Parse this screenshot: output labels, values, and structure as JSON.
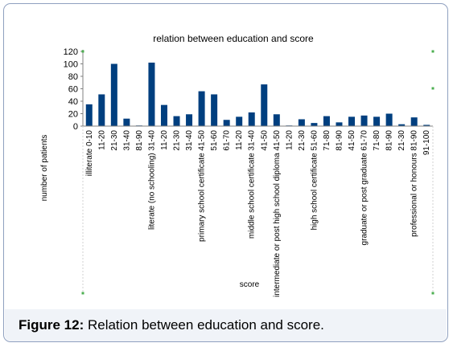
{
  "chart_data": {
    "type": "bar",
    "title": "relation between education and score",
    "xlabel": "score",
    "ylabel": "number of patients",
    "ylim": [
      0,
      120
    ],
    "yticks": [
      0,
      20,
      40,
      60,
      80,
      100,
      120
    ],
    "grid": false,
    "legend": "none",
    "bar_color": "#003f7f",
    "groups": [
      "illiterate",
      "literate (no schooling)",
      "primary school certificate",
      "middle school certificate",
      "intermediate or post high school diploma",
      "high school certificate",
      "graduate or post graduate",
      "professional or honours"
    ],
    "bars": [
      {
        "label": "0-10",
        "value": 35
      },
      {
        "label": "11-20",
        "value": 51
      },
      {
        "label": "21-30",
        "value": 100
      },
      {
        "label": "31-40",
        "value": 12
      },
      {
        "label": "81-90",
        "value": 1
      },
      {
        "label": "31-40",
        "value": 102
      },
      {
        "label": "11-20",
        "value": 34
      },
      {
        "label": "21-30",
        "value": 16
      },
      {
        "label": "31-40",
        "value": 19
      },
      {
        "label": "41-50",
        "value": 56
      },
      {
        "label": "51-60",
        "value": 51
      },
      {
        "label": "61-70",
        "value": 10
      },
      {
        "label": "11-20",
        "value": 15
      },
      {
        "label": "31-40",
        "value": 22
      },
      {
        "label": "41-50",
        "value": 67
      },
      {
        "label": "41-50",
        "value": 19
      },
      {
        "label": "11-20",
        "value": 1
      },
      {
        "label": "21-30",
        "value": 11
      },
      {
        "label": "51-60",
        "value": 5
      },
      {
        "label": "71-80",
        "value": 16
      },
      {
        "label": "81-90",
        "value": 6
      },
      {
        "label": "41-50",
        "value": 15
      },
      {
        "label": "61-70",
        "value": 17
      },
      {
        "label": "71-80",
        "value": 15
      },
      {
        "label": "81-90",
        "value": 20
      },
      {
        "label": "21-30",
        "value": 3
      },
      {
        "label": "81-90",
        "value": 14
      },
      {
        "label": "91-100",
        "value": 2
      }
    ]
  },
  "caption": {
    "lead": "Figure 12:",
    "text": " Relation between education and score."
  }
}
